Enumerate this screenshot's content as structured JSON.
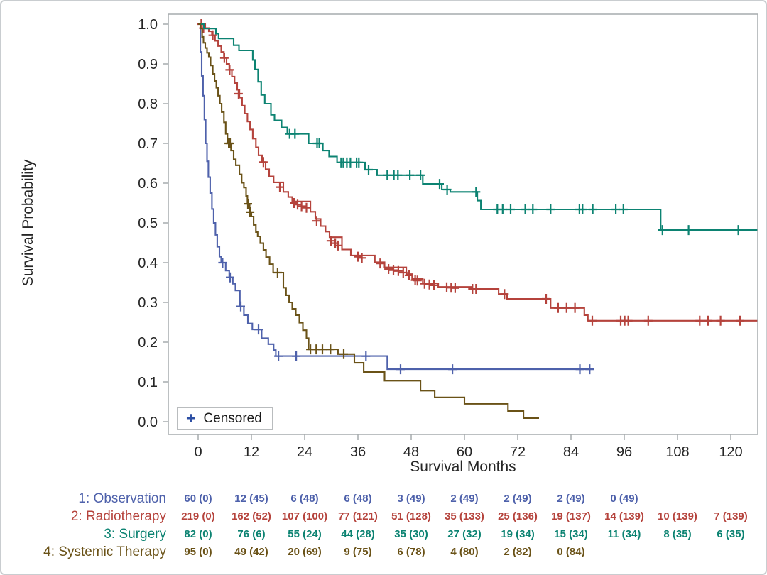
{
  "legend": {
    "symbol": "+",
    "label": "Censored"
  },
  "chart_data": {
    "type": "line",
    "subtype": "kaplan-meier-step",
    "title": "",
    "xlabel": "Survival Months",
    "ylabel": "Survival Probability",
    "xlim": [
      0,
      126
    ],
    "ylim": [
      0.0,
      1.0
    ],
    "xticks": [
      0,
      12,
      24,
      36,
      48,
      60,
      72,
      84,
      96,
      108,
      120
    ],
    "yticks": [
      0.0,
      0.1,
      0.2,
      0.3,
      0.4,
      0.5,
      0.6,
      0.7,
      0.8,
      0.9,
      1.0
    ],
    "grid": false,
    "legend_position": "bottom-left-inside",
    "series": [
      {
        "name": "1: Observation",
        "color": "#4e61ab",
        "steps": [
          [
            0,
            1.0
          ],
          [
            0.5,
            0.93
          ],
          [
            0.8,
            0.87
          ],
          [
            1.1,
            0.82
          ],
          [
            1.4,
            0.76
          ],
          [
            1.7,
            0.7
          ],
          [
            2.0,
            0.655
          ],
          [
            2.3,
            0.615
          ],
          [
            2.7,
            0.575
          ],
          [
            3.1,
            0.535
          ],
          [
            3.5,
            0.5
          ],
          [
            3.9,
            0.47
          ],
          [
            4.3,
            0.44
          ],
          [
            4.8,
            0.415
          ],
          [
            5.2,
            0.4
          ],
          [
            6.2,
            0.38
          ],
          [
            7.0,
            0.363
          ],
          [
            7.8,
            0.347
          ],
          [
            8.4,
            0.33
          ],
          [
            9.4,
            0.29
          ],
          [
            10.3,
            0.268
          ],
          [
            11.2,
            0.247
          ],
          [
            12.2,
            0.232
          ],
          [
            14.3,
            0.21
          ],
          [
            15.8,
            0.195
          ],
          [
            17.0,
            0.18
          ],
          [
            17.5,
            0.165
          ],
          [
            42.6,
            0.132
          ],
          [
            88.5,
            0.132
          ]
        ],
        "censors": [
          [
            5.5,
            0.4
          ],
          [
            7.2,
            0.363
          ],
          [
            9.6,
            0.29
          ],
          [
            13.6,
            0.232
          ],
          [
            18.1,
            0.165
          ],
          [
            22.1,
            0.165
          ],
          [
            37.8,
            0.165
          ],
          [
            45.6,
            0.132
          ],
          [
            57.3,
            0.132
          ],
          [
            86.0,
            0.132
          ],
          [
            88.2,
            0.132
          ]
        ]
      },
      {
        "name": "2: Radiotherapy",
        "color": "#b5433c",
        "steps": [
          [
            0,
            1.0
          ],
          [
            1.6,
            0.99
          ],
          [
            2.4,
            0.982
          ],
          [
            3.1,
            0.972
          ],
          [
            3.8,
            0.958
          ],
          [
            4.5,
            0.945
          ],
          [
            5.2,
            0.93
          ],
          [
            5.8,
            0.915
          ],
          [
            6.4,
            0.9
          ],
          [
            7.0,
            0.885
          ],
          [
            7.6,
            0.868
          ],
          [
            8.2,
            0.852
          ],
          [
            8.8,
            0.835
          ],
          [
            9.3,
            0.815
          ],
          [
            9.9,
            0.795
          ],
          [
            10.5,
            0.775
          ],
          [
            11.1,
            0.755
          ],
          [
            11.7,
            0.735
          ],
          [
            12.3,
            0.712
          ],
          [
            13.0,
            0.69
          ],
          [
            13.6,
            0.67
          ],
          [
            14.4,
            0.653
          ],
          [
            15.2,
            0.635
          ],
          [
            16.0,
            0.617
          ],
          [
            17.0,
            0.602
          ],
          [
            19.2,
            0.578
          ],
          [
            20.3,
            0.565
          ],
          [
            21.2,
            0.554
          ],
          [
            25.3,
            0.528
          ],
          [
            26.4,
            0.51
          ],
          [
            27.6,
            0.492
          ],
          [
            28.7,
            0.478
          ],
          [
            29.6,
            0.464
          ],
          [
            32.4,
            0.433
          ],
          [
            34.4,
            0.418
          ],
          [
            39.8,
            0.401
          ],
          [
            42.0,
            0.388
          ],
          [
            46.9,
            0.371
          ],
          [
            48.2,
            0.359
          ],
          [
            50.6,
            0.348
          ],
          [
            54.1,
            0.339
          ],
          [
            61.5,
            0.334
          ],
          [
            67.7,
            0.321
          ],
          [
            69.6,
            0.309
          ],
          [
            79.4,
            0.286
          ],
          [
            87.0,
            0.268
          ],
          [
            87.8,
            0.254
          ],
          [
            126,
            0.254
          ]
        ],
        "censors": [
          [
            0.7,
            1.0
          ],
          [
            1.2,
            0.99
          ],
          [
            3.3,
            0.972
          ],
          [
            5.9,
            0.915
          ],
          [
            7.1,
            0.885
          ],
          [
            9.1,
            0.825
          ],
          [
            14.7,
            0.653
          ],
          [
            18.4,
            0.59
          ],
          [
            21.6,
            0.55
          ],
          [
            22.4,
            0.546
          ],
          [
            23.3,
            0.542
          ],
          [
            24.4,
            0.538
          ],
          [
            26.7,
            0.505
          ],
          [
            29.9,
            0.455
          ],
          [
            30.9,
            0.449
          ],
          [
            31.5,
            0.443
          ],
          [
            36.0,
            0.415
          ],
          [
            36.9,
            0.412
          ],
          [
            41.0,
            0.398
          ],
          [
            42.9,
            0.384
          ],
          [
            44.0,
            0.381
          ],
          [
            45.1,
            0.379
          ],
          [
            46.2,
            0.375
          ],
          [
            47.5,
            0.368
          ],
          [
            48.9,
            0.356
          ],
          [
            49.4,
            0.355
          ],
          [
            51.0,
            0.347
          ],
          [
            52.1,
            0.345
          ],
          [
            53.1,
            0.343
          ],
          [
            56.0,
            0.338
          ],
          [
            57.0,
            0.337
          ],
          [
            57.9,
            0.336
          ],
          [
            61.8,
            0.334
          ],
          [
            62.6,
            0.334
          ],
          [
            69.0,
            0.321
          ],
          [
            78.4,
            0.309
          ],
          [
            81.1,
            0.286
          ],
          [
            83.0,
            0.286
          ],
          [
            84.9,
            0.286
          ],
          [
            88.8,
            0.254
          ],
          [
            95.2,
            0.254
          ],
          [
            96.1,
            0.254
          ],
          [
            96.9,
            0.254
          ],
          [
            101.4,
            0.254
          ],
          [
            113.0,
            0.254
          ],
          [
            114.9,
            0.254
          ],
          [
            117.7,
            0.254
          ],
          [
            122.1,
            0.254
          ]
        ]
      },
      {
        "name": "3: Surgery",
        "color": "#0c8372",
        "steps": [
          [
            0,
            1.0
          ],
          [
            1.3,
            0.989
          ],
          [
            4.0,
            0.976
          ],
          [
            4.6,
            0.964
          ],
          [
            8.0,
            0.947
          ],
          [
            9.2,
            0.934
          ],
          [
            12.3,
            0.91
          ],
          [
            12.8,
            0.886
          ],
          [
            13.5,
            0.855
          ],
          [
            14.2,
            0.822
          ],
          [
            15.0,
            0.8
          ],
          [
            16.4,
            0.772
          ],
          [
            17.2,
            0.758
          ],
          [
            18.8,
            0.74
          ],
          [
            20.1,
            0.724
          ],
          [
            24.9,
            0.7
          ],
          [
            28.1,
            0.682
          ],
          [
            29.5,
            0.667
          ],
          [
            31.3,
            0.652
          ],
          [
            37.6,
            0.634
          ],
          [
            40.3,
            0.62
          ],
          [
            50.6,
            0.598
          ],
          [
            54.9,
            0.584
          ],
          [
            56.8,
            0.578
          ],
          [
            62.9,
            0.556
          ],
          [
            63.7,
            0.534
          ],
          [
            104.2,
            0.482
          ],
          [
            126,
            0.482
          ]
        ],
        "censors": [
          [
            20.6,
            0.724
          ],
          [
            21.8,
            0.724
          ],
          [
            26.8,
            0.7
          ],
          [
            27.3,
            0.7
          ],
          [
            32.2,
            0.652
          ],
          [
            32.7,
            0.652
          ],
          [
            33.5,
            0.652
          ],
          [
            34.3,
            0.652
          ],
          [
            35.7,
            0.652
          ],
          [
            36.2,
            0.652
          ],
          [
            38.4,
            0.634
          ],
          [
            42.6,
            0.62
          ],
          [
            44.1,
            0.62
          ],
          [
            45.0,
            0.62
          ],
          [
            47.7,
            0.62
          ],
          [
            50.1,
            0.62
          ],
          [
            54.4,
            0.598
          ],
          [
            56.1,
            0.584
          ],
          [
            62.6,
            0.578
          ],
          [
            67.4,
            0.534
          ],
          [
            68.6,
            0.534
          ],
          [
            70.4,
            0.534
          ],
          [
            73.7,
            0.534
          ],
          [
            75.4,
            0.534
          ],
          [
            79.4,
            0.534
          ],
          [
            85.9,
            0.534
          ],
          [
            86.6,
            0.534
          ],
          [
            88.9,
            0.534
          ],
          [
            94.1,
            0.534
          ],
          [
            95.8,
            0.534
          ],
          [
            104.6,
            0.482
          ],
          [
            110.5,
            0.482
          ],
          [
            121.7,
            0.482
          ]
        ]
      },
      {
        "name": "4: Systemic Therapy",
        "color": "#6a5217",
        "steps": [
          [
            0,
            1.0
          ],
          [
            0.5,
            0.989
          ],
          [
            0.9,
            0.968
          ],
          [
            1.2,
            0.953
          ],
          [
            1.6,
            0.94
          ],
          [
            2.0,
            0.928
          ],
          [
            2.4,
            0.917
          ],
          [
            2.8,
            0.896
          ],
          [
            3.3,
            0.875
          ],
          [
            3.7,
            0.857
          ],
          [
            4.1,
            0.84
          ],
          [
            4.5,
            0.82
          ],
          [
            4.9,
            0.8
          ],
          [
            5.3,
            0.779
          ],
          [
            5.8,
            0.753
          ],
          [
            6.2,
            0.724
          ],
          [
            6.6,
            0.7
          ],
          [
            7.4,
            0.682
          ],
          [
            8.0,
            0.66
          ],
          [
            8.5,
            0.645
          ],
          [
            9.3,
            0.622
          ],
          [
            9.8,
            0.601
          ],
          [
            10.3,
            0.589
          ],
          [
            10.8,
            0.568
          ],
          [
            11.1,
            0.548
          ],
          [
            11.6,
            0.527
          ],
          [
            12.0,
            0.516
          ],
          [
            12.5,
            0.495
          ],
          [
            13.0,
            0.477
          ],
          [
            13.4,
            0.466
          ],
          [
            14.0,
            0.449
          ],
          [
            14.7,
            0.432
          ],
          [
            15.3,
            0.414
          ],
          [
            16.1,
            0.396
          ],
          [
            16.9,
            0.375
          ],
          [
            19.2,
            0.337
          ],
          [
            19.8,
            0.318
          ],
          [
            20.5,
            0.3
          ],
          [
            21.2,
            0.284
          ],
          [
            22.0,
            0.268
          ],
          [
            22.8,
            0.249
          ],
          [
            23.6,
            0.23
          ],
          [
            24.4,
            0.21
          ],
          [
            24.9,
            0.182
          ],
          [
            31.5,
            0.17
          ],
          [
            35.2,
            0.148
          ],
          [
            37.3,
            0.125
          ],
          [
            42.0,
            0.103
          ],
          [
            50.1,
            0.078
          ],
          [
            53.3,
            0.061
          ],
          [
            60.0,
            0.045
          ],
          [
            69.8,
            0.027
          ],
          [
            73.3,
            0.009
          ],
          [
            76.8,
            0.009
          ]
        ],
        "censors": [
          [
            6.9,
            0.7
          ],
          [
            7.2,
            0.7
          ],
          [
            11.2,
            0.548
          ],
          [
            11.7,
            0.527
          ],
          [
            17.9,
            0.375
          ],
          [
            25.3,
            0.182
          ],
          [
            26.6,
            0.182
          ],
          [
            28.0,
            0.182
          ],
          [
            29.8,
            0.182
          ],
          [
            32.8,
            0.17
          ]
        ]
      }
    ]
  },
  "risk_table": {
    "months": [
      0,
      12,
      24,
      36,
      48,
      60,
      72,
      84,
      96,
      108,
      120
    ],
    "rows": [
      {
        "label": "1: Observation",
        "color": "#4e61ab",
        "values": [
          "60 (0)",
          "12 (45)",
          "6 (48)",
          "6 (48)",
          "3 (49)",
          "2 (49)",
          "2 (49)",
          "2 (49)",
          "0 (49)",
          "",
          ""
        ]
      },
      {
        "label": "2: Radiotherapy",
        "color": "#b5433c",
        "values": [
          "219 (0)",
          "162 (52)",
          "107 (100)",
          "77 (121)",
          "51 (128)",
          "35 (133)",
          "25 (136)",
          "19 (137)",
          "14 (139)",
          "10 (139)",
          "7 (139)"
        ]
      },
      {
        "label": "3: Surgery",
        "color": "#0c8372",
        "values": [
          "82 (0)",
          "76 (6)",
          "55 (24)",
          "44 (28)",
          "35 (30)",
          "27 (32)",
          "19 (34)",
          "15 (34)",
          "11 (34)",
          "8 (35)",
          "6 (35)"
        ]
      },
      {
        "label": "4: Systemic Therapy",
        "color": "#6a5217",
        "values": [
          "95 (0)",
          "49 (42)",
          "20 (69)",
          "9 (75)",
          "6 (78)",
          "4 (80)",
          "2 (82)",
          "0 (84)",
          "",
          "",
          ""
        ]
      }
    ]
  },
  "style": {
    "axis_color": "#a6abad",
    "text_color": "#262626",
    "plot_background": "#ffffff"
  }
}
